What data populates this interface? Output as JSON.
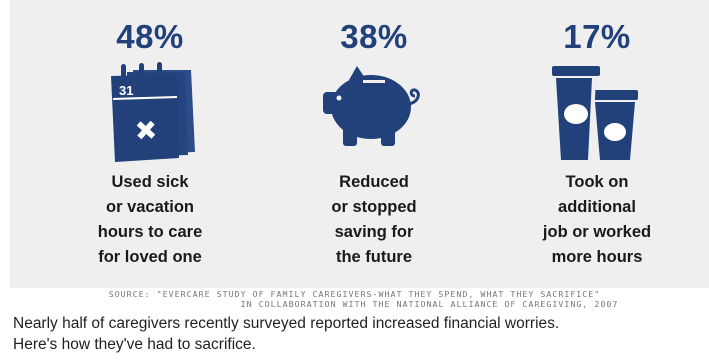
{
  "chart_data": {
    "type": "table",
    "items": [
      {
        "percent": "48%",
        "value": 48,
        "icon": "calendar-icon",
        "calendar_date": "31",
        "label_lines": [
          "Used sick",
          "or vacation",
          "hours to care",
          "for loved one"
        ]
      },
      {
        "percent": "38%",
        "value": 38,
        "icon": "piggy-bank-icon",
        "label_lines": [
          "Reduced",
          "or stopped",
          "saving for",
          "the future"
        ]
      },
      {
        "percent": "17%",
        "value": 17,
        "icon": "coffee-cups-icon",
        "label_lines": [
          "Took on",
          "additional",
          "job or worked",
          "more hours"
        ]
      }
    ],
    "source_lines": [
      "SOURCE: \"EVERCARE STUDY OF FAMILY CAREGIVERS-WHAT THEY SPEND, WHAT THEY SACRIFICE\"",
      "IN COLLABORATION WITH THE NATIONAL ALLIANCE OF CAREGIVING, 2007"
    ]
  },
  "caption_lines": [
    "Nearly half of caregivers recently surveyed reported increased financial worries.",
    "Here's how they've had to sacrifice."
  ],
  "colors": {
    "accent": "#22407a",
    "panel_bg": "#efefef",
    "text": "#1a1a1a",
    "source_text": "#777777"
  }
}
